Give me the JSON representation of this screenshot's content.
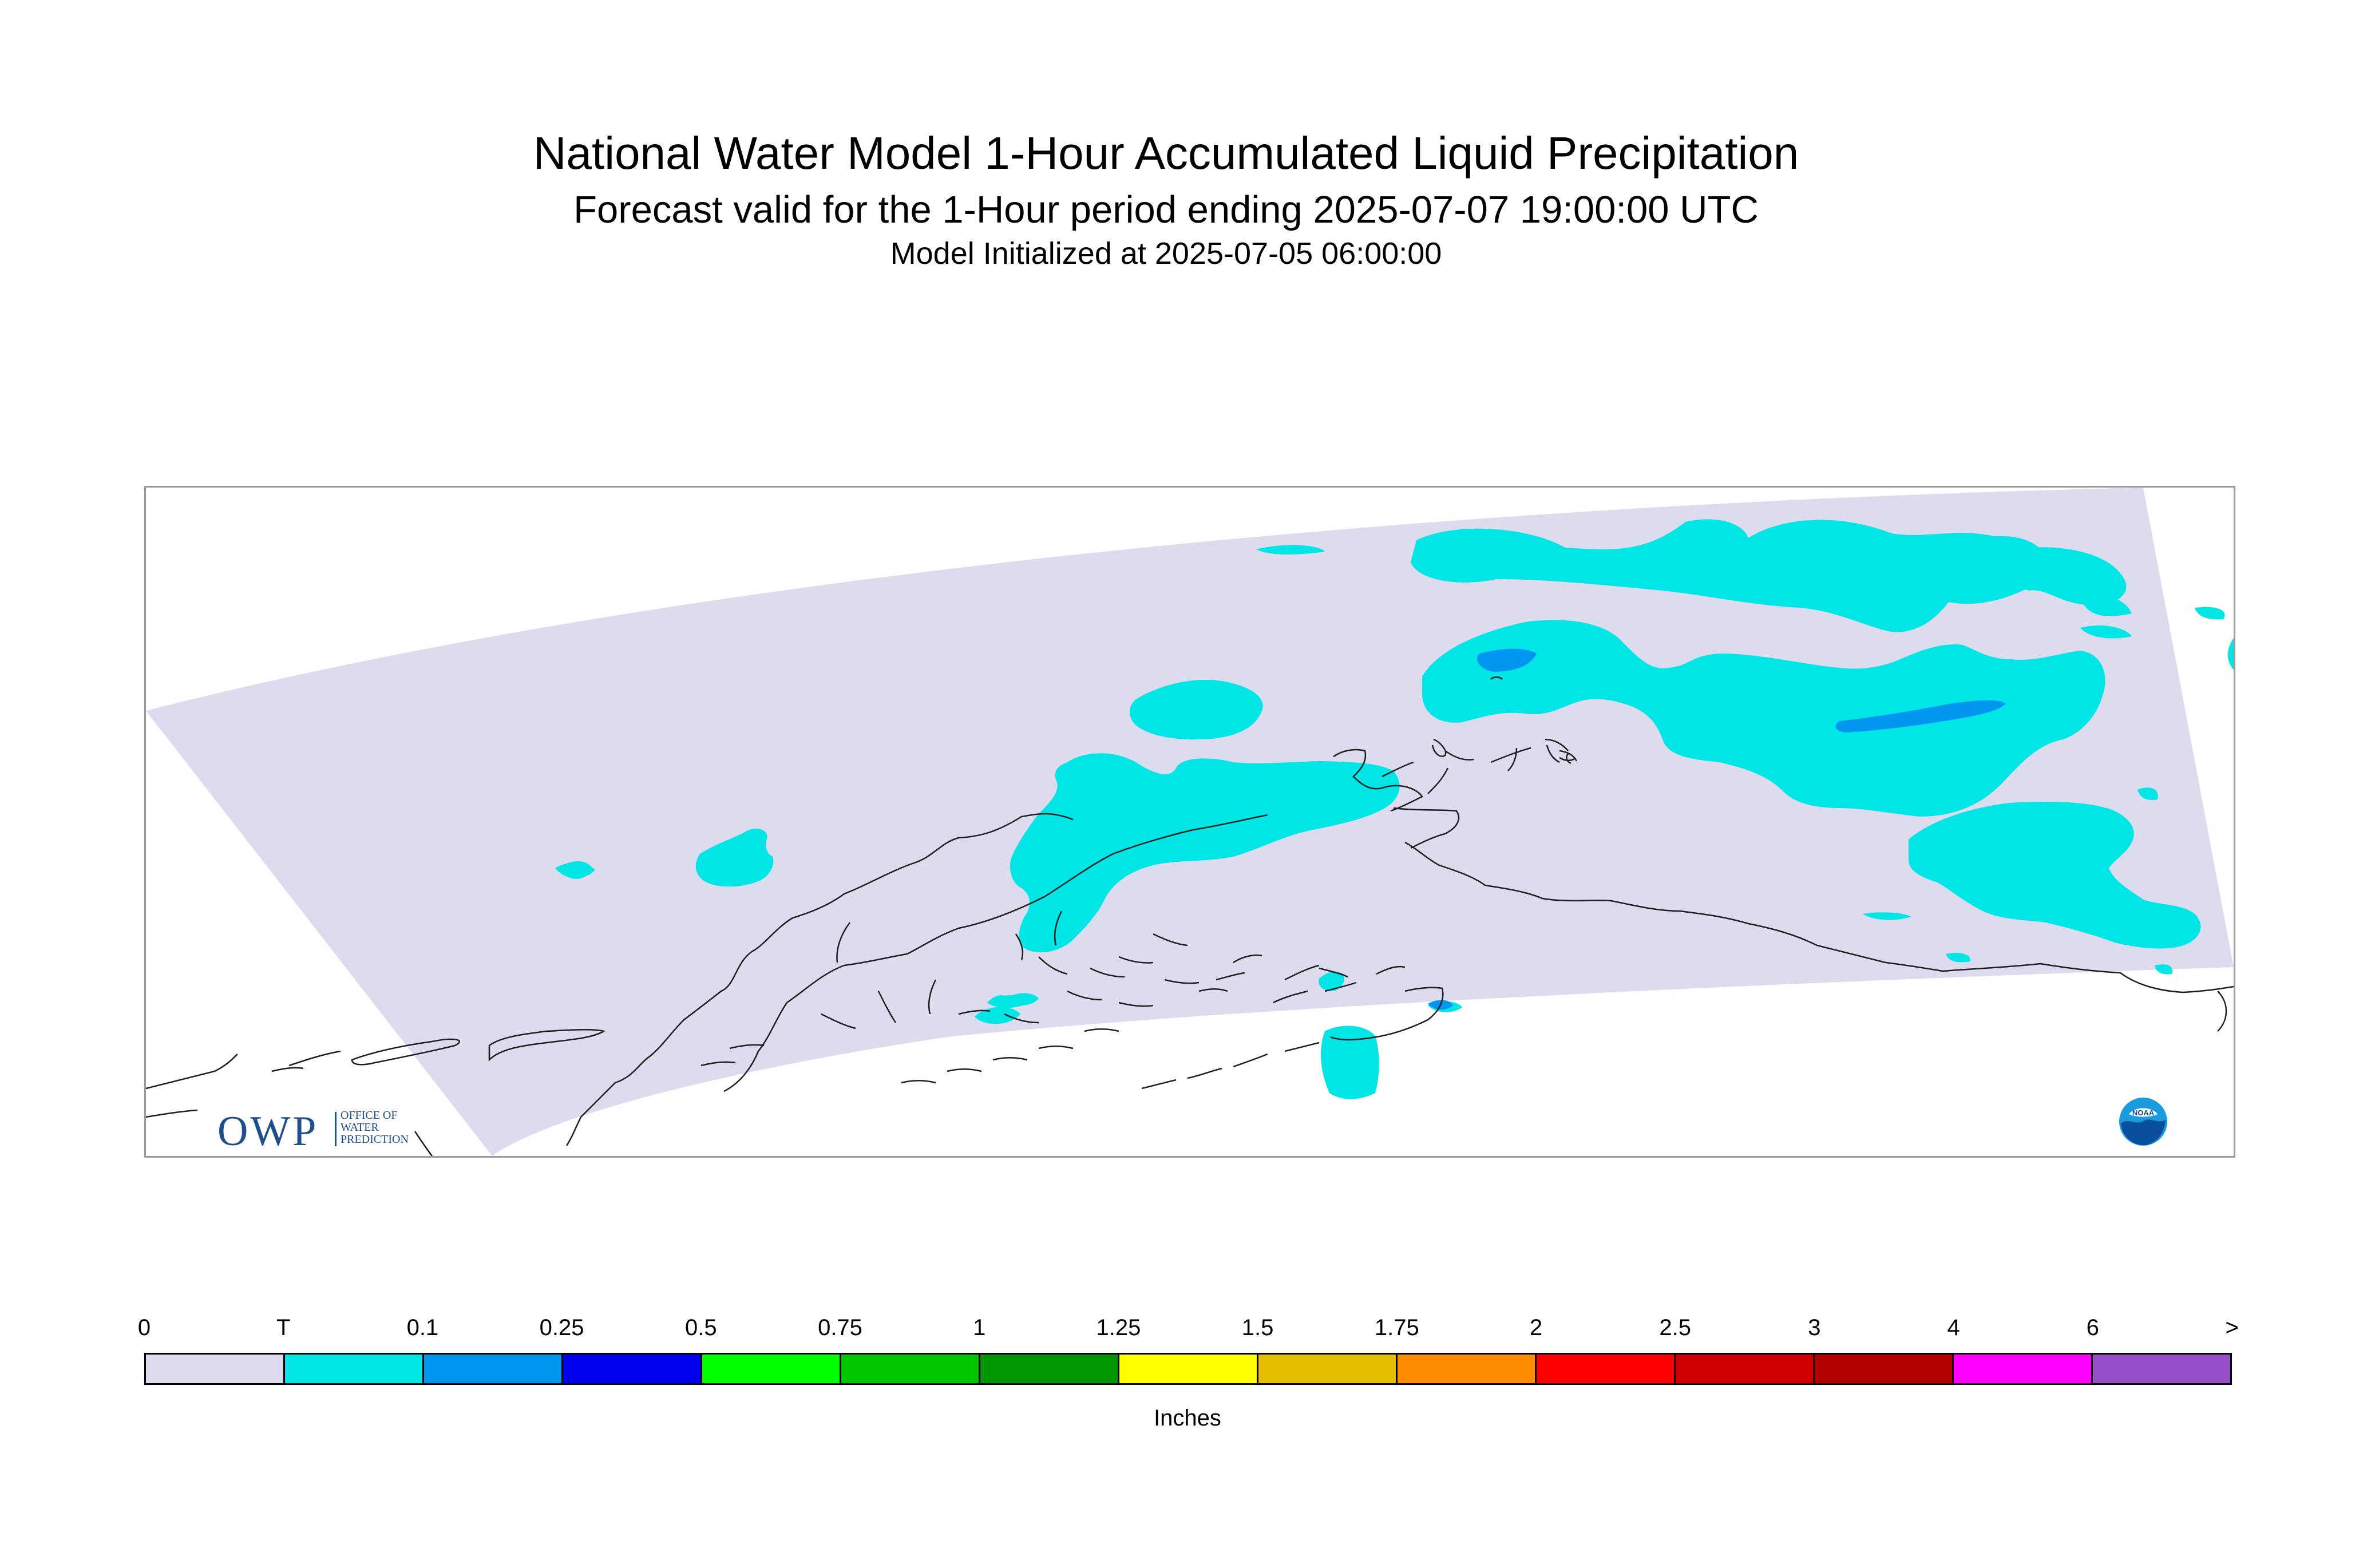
{
  "header": {
    "title": "National Water Model 1-Hour Accumulated Liquid Precipitation",
    "subtitle": "Forecast valid for the 1-Hour period ending 2025-07-07 19:00:00 UTC",
    "init": "Model Initialized at 2025-07-05 06:00:00"
  },
  "logos": {
    "owp_letters": "OWP",
    "owp_words": [
      "OFFICE OF",
      "WATER",
      "PREDICTION"
    ],
    "noaa": "NOAA"
  },
  "legend": {
    "labels": [
      "0",
      "T",
      "0.1",
      "0.25",
      "0.5",
      "0.75",
      "1",
      "1.25",
      "1.5",
      "1.75",
      "2",
      "2.5",
      "3",
      "4",
      "6",
      ">"
    ],
    "colors": [
      "#dcdcee",
      "#00e5e5",
      "#0096f0",
      "#0000f0",
      "#00ff00",
      "#00c800",
      "#009600",
      "#ffff00",
      "#e6be00",
      "#ff8c00",
      "#ff0000",
      "#d20000",
      "#b40000",
      "#ff00ff",
      "#9650c8"
    ],
    "units": "Inches"
  },
  "colors": {
    "domain": "#dcdcee",
    "trace": "#00e5e5",
    "light": "#0096f0",
    "coast": "#1e1e1e",
    "frame": "#9a9a9a"
  }
}
